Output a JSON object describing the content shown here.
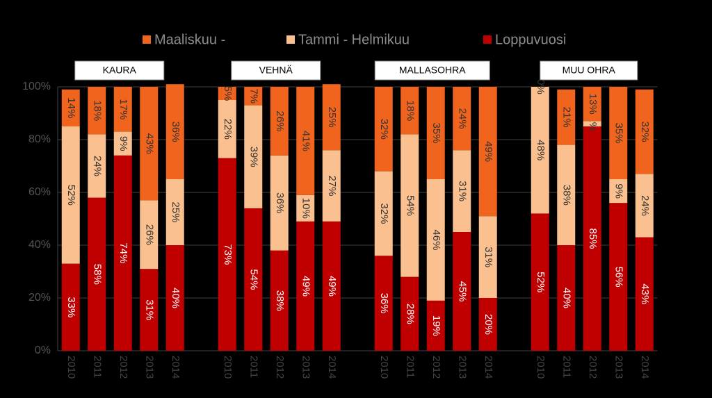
{
  "chart_data": {
    "type": "stacked_bar",
    "categories": [
      "2010",
      "2011",
      "2012",
      "2013",
      "2014",
      null,
      "2010",
      "2011",
      "2012",
      "2013",
      "2014",
      null,
      "2010",
      "2011",
      "2012",
      "2013",
      "2014",
      null,
      "2010",
      "2011",
      "2012",
      "2013",
      "2014"
    ],
    "group_labels": [
      "KAURA",
      "VEHNÄ",
      "MALLASOHRA",
      "MUU OHRA"
    ],
    "legend_order": [
      2,
      1,
      0
    ],
    "series": [
      {
        "name": "Loppuvuosi",
        "color": "#c00000",
        "values": [
          33,
          58,
          74,
          31,
          40,
          null,
          73,
          54,
          38,
          49,
          49,
          null,
          36,
          28,
          19,
          45,
          20,
          null,
          52,
          40,
          85,
          56,
          43
        ],
        "value_labels": [
          "33%",
          "58%",
          "74%",
          "31%",
          "40%",
          null,
          "73%",
          "54%",
          "38%",
          "49%",
          "49%",
          null,
          "36%",
          "28%",
          "19%",
          "45%",
          "20%",
          null,
          "52%",
          "40%",
          "85%",
          "56%",
          "43%"
        ]
      },
      {
        "name": "Tammi - Helmikuu",
        "color": "#fac08f",
        "values": [
          52,
          24,
          9,
          26,
          25,
          null,
          22,
          39,
          36,
          10,
          27,
          null,
          32,
          54,
          46,
          31,
          31,
          null,
          48,
          38,
          2,
          9,
          24
        ],
        "value_labels": [
          "52%",
          "24%",
          "9%",
          "26%",
          "25%",
          null,
          "22%",
          "39%",
          "36%",
          "10%",
          "27%",
          null,
          "32%",
          "54%",
          "46%",
          "31%",
          "31%",
          null,
          "48%",
          "38%",
          "2%",
          "9%",
          "24%"
        ]
      },
      {
        "name": "Maaliskuu -",
        "color": "#f0641e",
        "values": [
          14,
          18,
          17,
          43,
          36,
          null,
          5,
          7,
          26,
          41,
          25,
          null,
          32,
          18,
          35,
          24,
          49,
          null,
          0,
          21,
          13,
          35,
          32
        ],
        "value_labels": [
          "14%",
          "18%",
          "17%",
          "43%",
          "36%",
          null,
          "5%",
          "7%",
          "26%",
          "41%",
          "25%",
          null,
          "32%",
          "18%",
          "35%",
          "24%",
          "49%",
          null,
          "0%",
          "21%",
          "13%",
          "35%",
          "32%"
        ]
      }
    ],
    "ylim": [
      0,
      100
    ],
    "yticks": [
      {
        "value": 0,
        "label": "0%"
      },
      {
        "value": 20,
        "label": "20%"
      },
      {
        "value": 40,
        "label": "40%"
      },
      {
        "value": 60,
        "label": "60%"
      },
      {
        "value": 80,
        "label": "80%"
      },
      {
        "value": 100,
        "label": "100%"
      }
    ],
    "grid": true
  }
}
